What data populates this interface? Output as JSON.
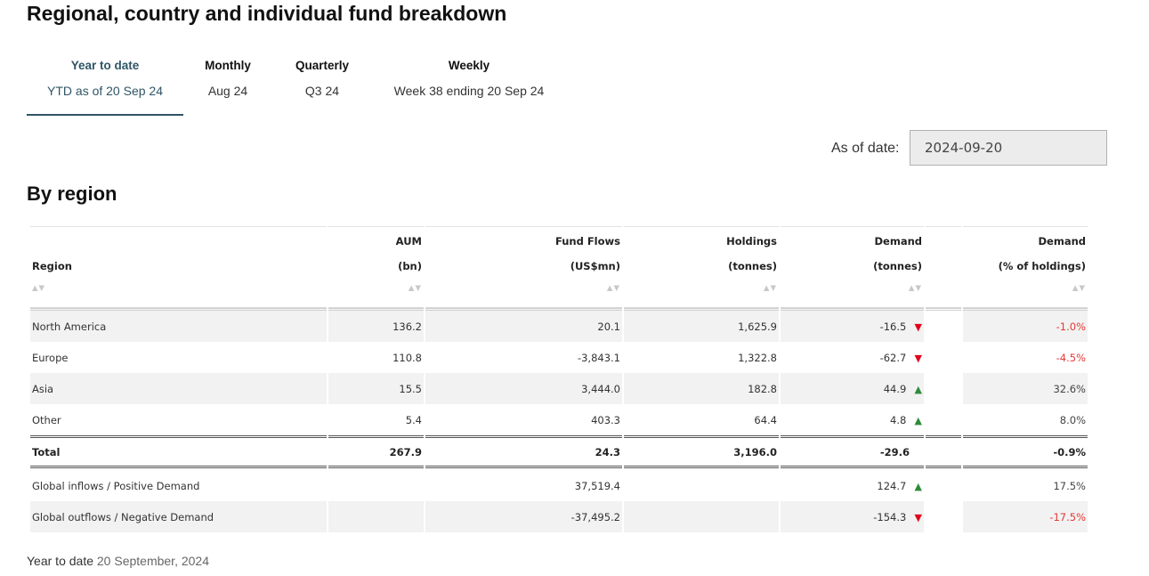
{
  "page_title": "Regional, country and individual fund breakdown",
  "tabs": [
    {
      "label": "Year to date",
      "sub": "YTD as of 20 Sep 24",
      "active": true
    },
    {
      "label": "Monthly",
      "sub": "Aug 24",
      "active": false
    },
    {
      "label": "Quarterly",
      "sub": "Q3 24",
      "active": false
    },
    {
      "label": "Weekly",
      "sub": "Week 38 ending 20 Sep 24",
      "active": false
    }
  ],
  "as_of": {
    "label": "As of date:",
    "value": "2024-09-20"
  },
  "section_title": "By region",
  "sort_glyph": "▲▼",
  "columns": [
    {
      "line1": "",
      "line2": "Region"
    },
    {
      "line1": "AUM",
      "line2": "(bn)"
    },
    {
      "line1": "Fund Flows",
      "line2": "(US$mn)"
    },
    {
      "line1": "Holdings",
      "line2": "(tonnes)"
    },
    {
      "line1": "Demand",
      "line2": "(tonnes)"
    },
    {
      "line1": "Demand",
      "line2": "(% of holdings)"
    }
  ],
  "rows": [
    {
      "region": "North America",
      "aum": "136.2",
      "flows": "20.1",
      "holdings": "1,625.9",
      "demand": "-16.5",
      "trend": "▼",
      "pct": "-1.0%"
    },
    {
      "region": "Europe",
      "aum": "110.8",
      "flows": "-3,843.1",
      "holdings": "1,322.8",
      "demand": "-62.7",
      "trend": "▼",
      "pct": "-4.5%"
    },
    {
      "region": "Asia",
      "aum": "15.5",
      "flows": "3,444.0",
      "holdings": "182.8",
      "demand": "44.9",
      "trend": "▲",
      "pct": "32.6%"
    },
    {
      "region": "Other",
      "aum": "5.4",
      "flows": "403.3",
      "holdings": "64.4",
      "demand": "4.8",
      "trend": "▲",
      "pct": "8.0%"
    }
  ],
  "total": {
    "region": "Total",
    "aum": "267.9",
    "flows": "24.3",
    "holdings": "3,196.0",
    "demand": "-29.6",
    "pct": "-0.9%"
  },
  "global_rows": [
    {
      "region": "Global inflows / Positive Demand",
      "aum": "",
      "flows": "37,519.4",
      "holdings": "",
      "demand": "124.7",
      "trend": "▲",
      "pct": "17.5%"
    },
    {
      "region": "Global outflows / Negative Demand",
      "aum": "",
      "flows": "-37,495.2",
      "holdings": "",
      "demand": "-154.3",
      "trend": "▼",
      "pct": "-17.5%"
    }
  ],
  "footer": {
    "label": "Year to date",
    "date": "20 September, 2024"
  },
  "colors": {
    "accent": "#2f5565",
    "negative": "#e53935",
    "down_arrow": "#e0001b",
    "up_arrow": "#2e8b3a"
  }
}
